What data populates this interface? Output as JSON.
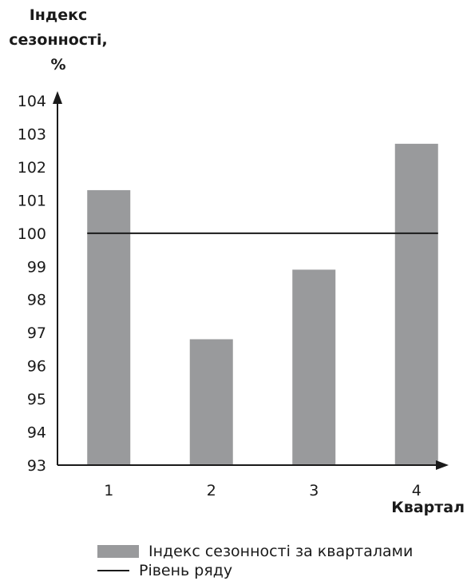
{
  "chart_data": {
    "type": "bar",
    "ylabel": "Індекс сезонності, %",
    "xlabel": "Квартал",
    "categories": [
      "1",
      "2",
      "3",
      "4"
    ],
    "series": [
      {
        "name": "Індекс сезонності за кварталами",
        "values": [
          101.3,
          96.8,
          98.9,
          102.7
        ]
      }
    ],
    "reference_line": {
      "name": "Рівень ряду",
      "value": 100
    },
    "ylim": [
      93,
      104
    ],
    "yticks": [
      93,
      94,
      95,
      96,
      97,
      98,
      99,
      100,
      101,
      102,
      103,
      104
    ],
    "grid": false,
    "legend": "bottom",
    "colors": {
      "bar": "#999a9c",
      "line": "#1a1a1a",
      "axis": "#1a1a1a"
    }
  }
}
